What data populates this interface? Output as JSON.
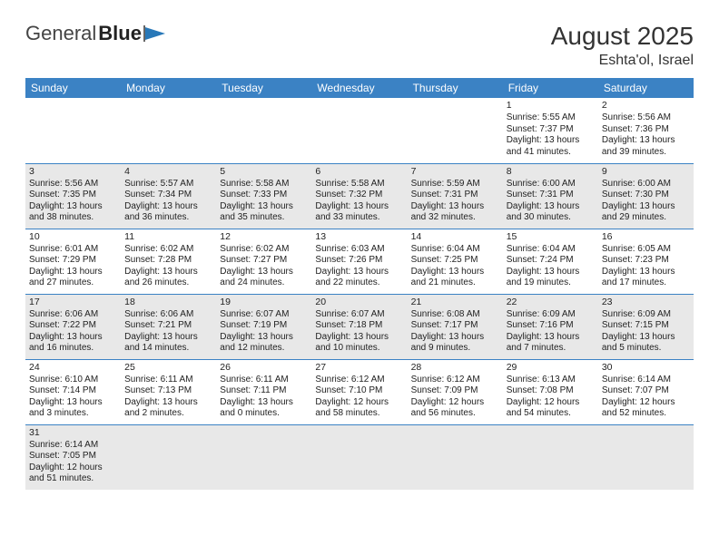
{
  "header": {
    "logo1": "General",
    "logo2": "Blue",
    "title": "August 2025",
    "location": "Eshta'ol, Israel"
  },
  "colors": {
    "header_bg": "#3b82c4",
    "header_text": "#ffffff",
    "row_divider": "#3b82c4",
    "shaded_bg": "#e8e8e8",
    "text": "#222222"
  },
  "typography": {
    "title_fontsize": 28,
    "location_fontsize": 16,
    "dow_fontsize": 12,
    "cell_fontsize": 10
  },
  "days_of_week": [
    "Sunday",
    "Monday",
    "Tuesday",
    "Wednesday",
    "Thursday",
    "Friday",
    "Saturday"
  ],
  "calendar": {
    "first_weekday_index": 5,
    "num_days": 31,
    "days": [
      {
        "n": 1,
        "sunrise": "5:55 AM",
        "sunset": "7:37 PM",
        "daylight": "13 hours and 41 minutes."
      },
      {
        "n": 2,
        "sunrise": "5:56 AM",
        "sunset": "7:36 PM",
        "daylight": "13 hours and 39 minutes."
      },
      {
        "n": 3,
        "sunrise": "5:56 AM",
        "sunset": "7:35 PM",
        "daylight": "13 hours and 38 minutes."
      },
      {
        "n": 4,
        "sunrise": "5:57 AM",
        "sunset": "7:34 PM",
        "daylight": "13 hours and 36 minutes."
      },
      {
        "n": 5,
        "sunrise": "5:58 AM",
        "sunset": "7:33 PM",
        "daylight": "13 hours and 35 minutes."
      },
      {
        "n": 6,
        "sunrise": "5:58 AM",
        "sunset": "7:32 PM",
        "daylight": "13 hours and 33 minutes."
      },
      {
        "n": 7,
        "sunrise": "5:59 AM",
        "sunset": "7:31 PM",
        "daylight": "13 hours and 32 minutes."
      },
      {
        "n": 8,
        "sunrise": "6:00 AM",
        "sunset": "7:31 PM",
        "daylight": "13 hours and 30 minutes."
      },
      {
        "n": 9,
        "sunrise": "6:00 AM",
        "sunset": "7:30 PM",
        "daylight": "13 hours and 29 minutes."
      },
      {
        "n": 10,
        "sunrise": "6:01 AM",
        "sunset": "7:29 PM",
        "daylight": "13 hours and 27 minutes."
      },
      {
        "n": 11,
        "sunrise": "6:02 AM",
        "sunset": "7:28 PM",
        "daylight": "13 hours and 26 minutes."
      },
      {
        "n": 12,
        "sunrise": "6:02 AM",
        "sunset": "7:27 PM",
        "daylight": "13 hours and 24 minutes."
      },
      {
        "n": 13,
        "sunrise": "6:03 AM",
        "sunset": "7:26 PM",
        "daylight": "13 hours and 22 minutes."
      },
      {
        "n": 14,
        "sunrise": "6:04 AM",
        "sunset": "7:25 PM",
        "daylight": "13 hours and 21 minutes."
      },
      {
        "n": 15,
        "sunrise": "6:04 AM",
        "sunset": "7:24 PM",
        "daylight": "13 hours and 19 minutes."
      },
      {
        "n": 16,
        "sunrise": "6:05 AM",
        "sunset": "7:23 PM",
        "daylight": "13 hours and 17 minutes."
      },
      {
        "n": 17,
        "sunrise": "6:06 AM",
        "sunset": "7:22 PM",
        "daylight": "13 hours and 16 minutes."
      },
      {
        "n": 18,
        "sunrise": "6:06 AM",
        "sunset": "7:21 PM",
        "daylight": "13 hours and 14 minutes."
      },
      {
        "n": 19,
        "sunrise": "6:07 AM",
        "sunset": "7:19 PM",
        "daylight": "13 hours and 12 minutes."
      },
      {
        "n": 20,
        "sunrise": "6:07 AM",
        "sunset": "7:18 PM",
        "daylight": "13 hours and 10 minutes."
      },
      {
        "n": 21,
        "sunrise": "6:08 AM",
        "sunset": "7:17 PM",
        "daylight": "13 hours and 9 minutes."
      },
      {
        "n": 22,
        "sunrise": "6:09 AM",
        "sunset": "7:16 PM",
        "daylight": "13 hours and 7 minutes."
      },
      {
        "n": 23,
        "sunrise": "6:09 AM",
        "sunset": "7:15 PM",
        "daylight": "13 hours and 5 minutes."
      },
      {
        "n": 24,
        "sunrise": "6:10 AM",
        "sunset": "7:14 PM",
        "daylight": "13 hours and 3 minutes."
      },
      {
        "n": 25,
        "sunrise": "6:11 AM",
        "sunset": "7:13 PM",
        "daylight": "13 hours and 2 minutes."
      },
      {
        "n": 26,
        "sunrise": "6:11 AM",
        "sunset": "7:11 PM",
        "daylight": "13 hours and 0 minutes."
      },
      {
        "n": 27,
        "sunrise": "6:12 AM",
        "sunset": "7:10 PM",
        "daylight": "12 hours and 58 minutes."
      },
      {
        "n": 28,
        "sunrise": "6:12 AM",
        "sunset": "7:09 PM",
        "daylight": "12 hours and 56 minutes."
      },
      {
        "n": 29,
        "sunrise": "6:13 AM",
        "sunset": "7:08 PM",
        "daylight": "12 hours and 54 minutes."
      },
      {
        "n": 30,
        "sunrise": "6:14 AM",
        "sunset": "7:07 PM",
        "daylight": "12 hours and 52 minutes."
      },
      {
        "n": 31,
        "sunrise": "6:14 AM",
        "sunset": "7:05 PM",
        "daylight": "12 hours and 51 minutes."
      }
    ]
  },
  "labels": {
    "sunrise": "Sunrise: ",
    "sunset": "Sunset: ",
    "daylight": "Daylight: "
  }
}
